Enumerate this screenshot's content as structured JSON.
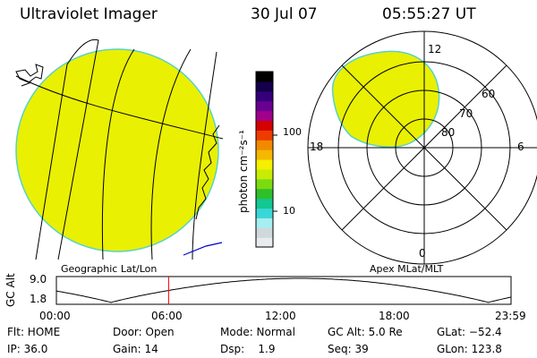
{
  "header": {
    "instrument": "Ultraviolet Imager",
    "date": "30 Jul 07",
    "time": "05:55:27 UT"
  },
  "left_panel": {
    "caption": "Geographic Lat/Lon"
  },
  "right_panel": {
    "caption": "Apex MLat/MLT",
    "mlt_labels": [
      "12",
      "18",
      "6",
      "0"
    ],
    "mlat_labels": [
      "60",
      "70",
      "80"
    ]
  },
  "colorbar": {
    "unit_label": "photon cm⁻²s⁻¹",
    "tick_labels": [
      "100",
      "10"
    ],
    "colors": [
      "#e9ecec",
      "#cfd8da",
      "#a6eef0",
      "#39d7d6",
      "#12c893",
      "#2fbf2a",
      "#7bdb10",
      "#c8ec05",
      "#f5f000",
      "#f5b800",
      "#f08a00",
      "#ee3c00",
      "#d50000",
      "#a0008c",
      "#6a0090",
      "#34007a",
      "#14004a",
      "#000000"
    ]
  },
  "altitude_plot": {
    "ylabel": "GC Alt",
    "ytick_labels": [
      "9.0",
      "1.8"
    ],
    "xtick_labels": [
      "00:00",
      "06:00",
      "12:00",
      "18:00",
      "23:59"
    ],
    "current_time_hours": 5.925,
    "marker_color": "#ff0000"
  },
  "status": {
    "row1": [
      "Flt: HOME",
      "Door: Open",
      "Mode: Normal",
      "GC Alt: 5.0 Re",
      "GLat: −52.4"
    ],
    "row2": [
      "IP: 36.0",
      "Gain: 14",
      "Dsp:    1.9",
      "Seq: 39",
      "GLon: 123.8"
    ]
  },
  "colors": {
    "image_fill": "#e9f002",
    "image_edge": "#58d2c8",
    "coast": "#0000cc"
  }
}
